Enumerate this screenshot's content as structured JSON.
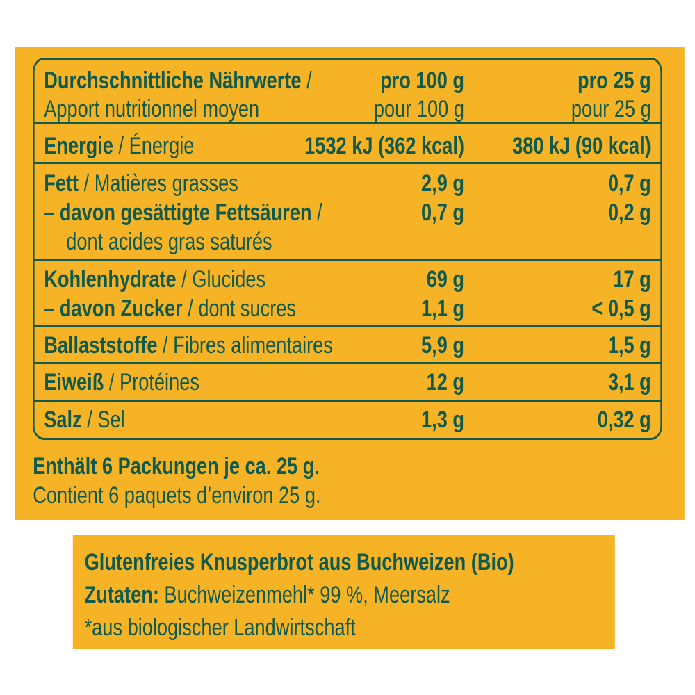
{
  "colors": {
    "background": "#F5B325",
    "text": "#0E5A4E"
  },
  "table": {
    "header": {
      "de": "Durchschnittliche Nährwerte",
      "sep": " /",
      "fr": "Apport nutritionnel moyen",
      "col1_de": "pro 100 g",
      "col1_fr": "pour 100 g",
      "col2_de": "pro 25 g",
      "col2_fr": "pour 25 g"
    },
    "rows": [
      {
        "de": "Energie",
        "fr": "Énergie",
        "v1": "1532 kJ (362 kcal)",
        "v2": "380 kJ (90 kcal)"
      },
      {
        "de": "Fett",
        "fr": "Matières grasses",
        "v1": "2,9 g",
        "v2": "0,7 g"
      },
      {
        "de": "–  davon gesättigte Fettsäuren",
        "fr": "dont acides gras saturés",
        "v1": "0,7 g",
        "v2": "0,2 g"
      },
      {
        "de": "Kohlenhydrate",
        "fr": "Glucides",
        "v1": "69 g",
        "v2": "17 g"
      },
      {
        "de": "–  davon Zucker",
        "fr": "dont sucres",
        "v1": "1,1 g",
        "v2": "< 0,5 g"
      },
      {
        "de": "Ballaststoffe",
        "fr": "Fibres alimentaires",
        "v1": "5,9 g",
        "v2": "1,5 g"
      },
      {
        "de": "Eiweiß",
        "fr": "Protéines",
        "v1": "12 g",
        "v2": "3,1 g"
      },
      {
        "de": "Salz",
        "fr": "Sel",
        "v1": "1,3 g",
        "v2": "0,32 g"
      }
    ],
    "sep": " / "
  },
  "footer": {
    "de": "Enthält 6 Packungen je ca. 25 g.",
    "fr": "Contient 6 paquets d’environ 25 g."
  },
  "ingredients": {
    "title": "Glutenfreies Knusperbrot aus Buchweizen (Bio)",
    "label": "Zutaten:",
    "list": " Buchweizenmehl* 99 %, Meersalz",
    "note": "*aus biologischer Landwirtschaft"
  }
}
